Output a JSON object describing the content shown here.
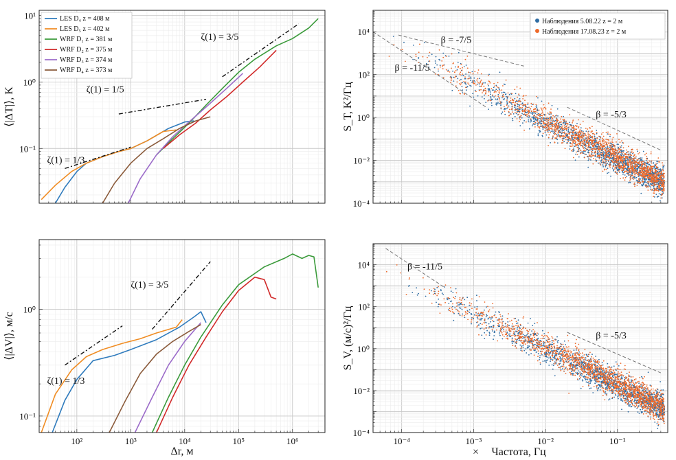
{
  "figure": {
    "x_axis_label_left": "Δr, м",
    "x_axis_label_right": "Частота, Гц",
    "x_axis_prefix_right": "×"
  },
  "chart_data": [
    {
      "id": "structure-temperature",
      "type": "line",
      "xlabel": "",
      "ylabel": "⟨|ΔT|⟩, K",
      "log_x": true,
      "log_y": true,
      "xlim": [
        20,
        4000000
      ],
      "ylim": [
        0.015,
        12
      ],
      "x_ticks": [],
      "y_ticks": [
        {
          "value": 0.1,
          "label": "10⁻¹"
        },
        {
          "value": 1,
          "label": "10⁰"
        },
        {
          "value": 10,
          "label": "10¹"
        }
      ],
      "grid": true,
      "legend": "top-left",
      "series": [
        {
          "name": "LES D₄ z = 408 м",
          "color": "#2f7bbd",
          "x": [
            40,
            60,
            100,
            150,
            300,
            600,
            1000,
            2000,
            5000,
            10000,
            15000
          ],
          "y": [
            0.015,
            0.026,
            0.045,
            0.06,
            0.075,
            0.09,
            0.1,
            0.13,
            0.2,
            0.25,
            0.26
          ]
        },
        {
          "name": "LES D₅ z = 402 м",
          "color": "#f08c22",
          "x": [
            22,
            40,
            80,
            150,
            300,
            600,
            1000,
            2000,
            4000,
            7000
          ],
          "y": [
            0.017,
            0.028,
            0.045,
            0.06,
            0.075,
            0.09,
            0.1,
            0.13,
            0.18,
            0.19
          ]
        },
        {
          "name": "WRF D₁ z = 381 м",
          "color": "#3a9a3a",
          "x": [
            3000,
            6000,
            12000,
            25000,
            50000,
            100000,
            200000,
            500000,
            1000000,
            2000000,
            3000000
          ],
          "y": [
            0.08,
            0.14,
            0.24,
            0.45,
            0.8,
            1.4,
            2.2,
            3.5,
            4.5,
            6.5,
            9.0
          ]
        },
        {
          "name": "WRF D₂ z = 375 м",
          "color": "#d12a2a",
          "x": [
            4000,
            8000,
            16000,
            30000,
            60000,
            120000,
            250000,
            500000
          ],
          "y": [
            0.1,
            0.16,
            0.24,
            0.38,
            0.6,
            1.0,
            1.7,
            3.0
          ]
        },
        {
          "name": "WRF D₃ z = 374 м",
          "color": "#9b6bc9",
          "x": [
            900,
            1500,
            3000,
            6000,
            12000,
            25000,
            60000,
            120000
          ],
          "y": [
            0.015,
            0.035,
            0.08,
            0.15,
            0.25,
            0.42,
            0.8,
            1.35
          ]
        },
        {
          "name": "WRF D₄ z = 373 м",
          "color": "#8a5a3a",
          "x": [
            300,
            500,
            1000,
            2000,
            4000,
            8000,
            16000,
            30000
          ],
          "y": [
            0.015,
            0.03,
            0.06,
            0.1,
            0.14,
            0.2,
            0.26,
            0.3
          ]
        }
      ],
      "annotations": [
        {
          "text": "ζ(1) = 1/3",
          "x": 28,
          "y": 0.06,
          "line": {
            "x0": 60,
            "y0": 0.05,
            "x1": 1000,
            "y1": 0.105
          }
        },
        {
          "text": "ζ(1) = 1/5",
          "x": 150,
          "y": 0.7,
          "line": {
            "x0": 600,
            "y0": 0.33,
            "x1": 25000,
            "y1": 0.55
          }
        },
        {
          "text": "ζ(1) = 3/5",
          "x": 20000,
          "y": 4.3,
          "line": {
            "x0": 50000,
            "y0": 1.2,
            "x1": 1300000,
            "y1": 7.5
          }
        }
      ]
    },
    {
      "id": "spectrum-temperature",
      "type": "scatter",
      "xlabel": "",
      "ylabel": "S_T, K²/Гц",
      "log_x": true,
      "log_y": true,
      "xlim": [
        4e-05,
        0.5
      ],
      "ylim": [
        0.0001,
        100000
      ],
      "x_ticks": [],
      "y_ticks": [
        {
          "value": 0.0001,
          "label": "10⁻⁴"
        },
        {
          "value": 0.01,
          "label": "10⁻²"
        },
        {
          "value": 1,
          "label": "10⁰"
        },
        {
          "value": 100,
          "label": "10²"
        },
        {
          "value": 10000,
          "label": "10⁴"
        }
      ],
      "grid": true,
      "legend": "top-right",
      "series": [
        {
          "name": "Наблюдения  5.08.22  z = 2 м",
          "color": "#2f6da3",
          "fit": {
            "f0": 0.01,
            "s0": 0.6,
            "slope_low": -1.8,
            "slope_high": -1.7
          }
        },
        {
          "name": "Наблюдения  17.08.23  z = 2 м",
          "color": "#ee6a2a",
          "fit": {
            "f0": 0.01,
            "s0": 0.6,
            "slope_low": -1.8,
            "slope_high": -1.7
          }
        }
      ],
      "annotations": [
        {
          "text": "β = -7/5",
          "x": 0.00035,
          "y": 3000,
          "line": {
            "x0": 9e-05,
            "y0": 7000,
            "x1": 0.005,
            "y1": 250
          }
        },
        {
          "text": "β = -11/5",
          "x": 8e-05,
          "y": 150,
          "line": {
            "x0": 4e-05,
            "y0": 10000,
            "x1": 0.0015,
            "y1": 3
          }
        },
        {
          "text": "β = -5/3",
          "x": 0.05,
          "y": 1,
          "line": {
            "x0": 0.02,
            "y0": 3,
            "x1": 0.4,
            "y1": 0.03
          }
        }
      ]
    },
    {
      "id": "structure-velocity",
      "type": "line",
      "xlabel": "Δr, м",
      "ylabel": "⟨|ΔV|⟩, м/с",
      "log_x": true,
      "log_y": true,
      "xlim": [
        20,
        4000000
      ],
      "ylim": [
        0.07,
        4.5
      ],
      "x_ticks": [
        {
          "value": 100,
          "label": "10²"
        },
        {
          "value": 1000,
          "label": "10³"
        },
        {
          "value": 10000,
          "label": "10⁴"
        },
        {
          "value": 100000,
          "label": "10⁵"
        },
        {
          "value": 1000000,
          "label": "10⁶"
        }
      ],
      "y_ticks": [
        {
          "value": 0.1,
          "label": "10⁻¹"
        },
        {
          "value": 1,
          "label": "10⁰"
        }
      ],
      "grid": true,
      "legend": "none",
      "series": [
        {
          "name": "LES D₄ z = 408 м",
          "color": "#2f7bbd",
          "x": [
            35,
            60,
            100,
            200,
            500,
            1000,
            3000,
            8000,
            15000,
            20000,
            25000
          ],
          "y": [
            0.07,
            0.14,
            0.22,
            0.33,
            0.37,
            0.42,
            0.52,
            0.68,
            0.85,
            0.95,
            0.75
          ]
        },
        {
          "name": "LES D₅ z = 402 м",
          "color": "#f08c22",
          "x": [
            22,
            40,
            80,
            150,
            300,
            700,
            1500,
            3000,
            7000,
            9000
          ],
          "y": [
            0.07,
            0.16,
            0.27,
            0.36,
            0.42,
            0.48,
            0.53,
            0.6,
            0.68,
            0.8
          ]
        },
        {
          "name": "WRF D₁ z = 381 м",
          "color": "#3a9a3a",
          "x": [
            2500,
            5000,
            10000,
            20000,
            50000,
            100000,
            300000,
            700000,
            1000000,
            1500000,
            2000000,
            2500000,
            3000000
          ],
          "y": [
            0.07,
            0.15,
            0.3,
            0.55,
            1.1,
            1.7,
            2.5,
            3.0,
            3.3,
            3.0,
            3.2,
            3.1,
            1.6
          ]
        },
        {
          "name": "WRF D₂ z = 375 м",
          "color": "#d12a2a",
          "x": [
            3000,
            6000,
            12000,
            25000,
            50000,
            100000,
            200000,
            300000,
            400000,
            500000
          ],
          "y": [
            0.07,
            0.15,
            0.3,
            0.55,
            0.95,
            1.5,
            2.0,
            1.9,
            1.3,
            1.25
          ]
        },
        {
          "name": "WRF D₃ z = 374 м",
          "color": "#9b6bc9",
          "x": [
            1200,
            2500,
            5000,
            10000,
            20000
          ],
          "y": [
            0.07,
            0.15,
            0.3,
            0.5,
            0.75
          ]
        },
        {
          "name": "WRF D₄ z = 373 м",
          "color": "#8a5a3a",
          "x": [
            400,
            800,
            1500,
            3000,
            6000,
            12000,
            20000
          ],
          "y": [
            0.07,
            0.14,
            0.25,
            0.38,
            0.5,
            0.62,
            0.72
          ]
        }
      ],
      "annotations": [
        {
          "text": "ζ(1) = 1/3",
          "x": 28,
          "y": 0.2,
          "line": {
            "x0": 60,
            "y0": 0.3,
            "x1": 700,
            "y1": 0.7
          }
        },
        {
          "text": "ζ(1) = 3/5",
          "x": 1000,
          "y": 1.6,
          "line": {
            "x0": 2500,
            "y0": 0.65,
            "x1": 30000,
            "y1": 2.8
          }
        }
      ]
    },
    {
      "id": "spectrum-velocity",
      "type": "scatter",
      "xlabel": "Частота, Гц",
      "ylabel": "S_V, (м/с)²/Гц",
      "log_x": true,
      "log_y": true,
      "xlim": [
        4e-05,
        0.5
      ],
      "ylim": [
        0.0001,
        100000
      ],
      "x_ticks": [
        {
          "value": 0.0001,
          "label": "10⁻⁴"
        },
        {
          "value": 0.001,
          "label": "10⁻³"
        },
        {
          "value": 0.01,
          "label": "10⁻²"
        },
        {
          "value": 0.1,
          "label": "10⁻¹"
        }
      ],
      "y_ticks": [
        {
          "value": 0.0001,
          "label": "10⁻⁴"
        },
        {
          "value": 0.01,
          "label": "10⁻²"
        },
        {
          "value": 1,
          "label": "10⁰"
        },
        {
          "value": 100,
          "label": "10²"
        },
        {
          "value": 10000,
          "label": "10⁴"
        }
      ],
      "grid": true,
      "legend": "none",
      "series": [
        {
          "name": "",
          "color": "#2f6da3",
          "fit": {
            "f0": 0.01,
            "s0": 1.2,
            "slope_low": -1.6,
            "slope_high": -1.8
          }
        },
        {
          "name": "",
          "color": "#ee6a2a",
          "fit": {
            "f0": 0.01,
            "s0": 1.2,
            "slope_low": -1.6,
            "slope_high": -1.8
          }
        }
      ],
      "annotations": [
        {
          "text": "β = -11/5",
          "x": 0.00012,
          "y": 6000,
          "line": {
            "x0": 6e-05,
            "y0": 60000,
            "x1": 0.0004,
            "y1": 800
          }
        },
        {
          "text": "β = -5/3",
          "x": 0.05,
          "y": 3,
          "line": {
            "x0": 0.02,
            "y0": 6,
            "x1": 0.4,
            "y1": 0.07
          }
        }
      ]
    }
  ]
}
